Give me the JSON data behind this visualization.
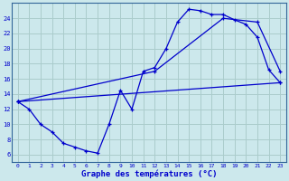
{
  "title": "Graphe des températures (°C)",
  "bg_color": "#cce8ec",
  "grid_color": "#aacccc",
  "line_color": "#0000cc",
  "xlim": [
    -0.5,
    23.5
  ],
  "ylim": [
    5,
    26
  ],
  "xticks": [
    0,
    1,
    2,
    3,
    4,
    5,
    6,
    7,
    8,
    9,
    10,
    11,
    12,
    13,
    14,
    15,
    16,
    17,
    18,
    19,
    20,
    21,
    22,
    23
  ],
  "yticks": [
    6,
    8,
    10,
    12,
    14,
    16,
    18,
    20,
    22,
    24
  ],
  "line1_x": [
    0,
    1,
    2,
    3,
    4,
    5,
    6,
    7,
    8,
    9,
    10,
    11,
    12,
    13,
    14,
    15,
    16,
    17,
    18,
    19,
    20,
    21,
    22,
    23
  ],
  "line1_y": [
    13.0,
    12.0,
    10.0,
    9.0,
    7.5,
    7.0,
    6.5,
    6.2,
    10.0,
    14.5,
    12.0,
    17.0,
    17.5,
    20.0,
    23.5,
    25.2,
    25.0,
    24.5,
    24.5,
    23.8,
    23.2,
    21.5,
    17.2,
    15.5
  ],
  "line2_x": [
    0,
    23
  ],
  "line2_y": [
    13.0,
    15.5
  ],
  "line3_x": [
    0,
    12,
    18,
    21,
    23
  ],
  "line3_y": [
    13.0,
    17.0,
    24.0,
    23.5,
    17.0
  ]
}
